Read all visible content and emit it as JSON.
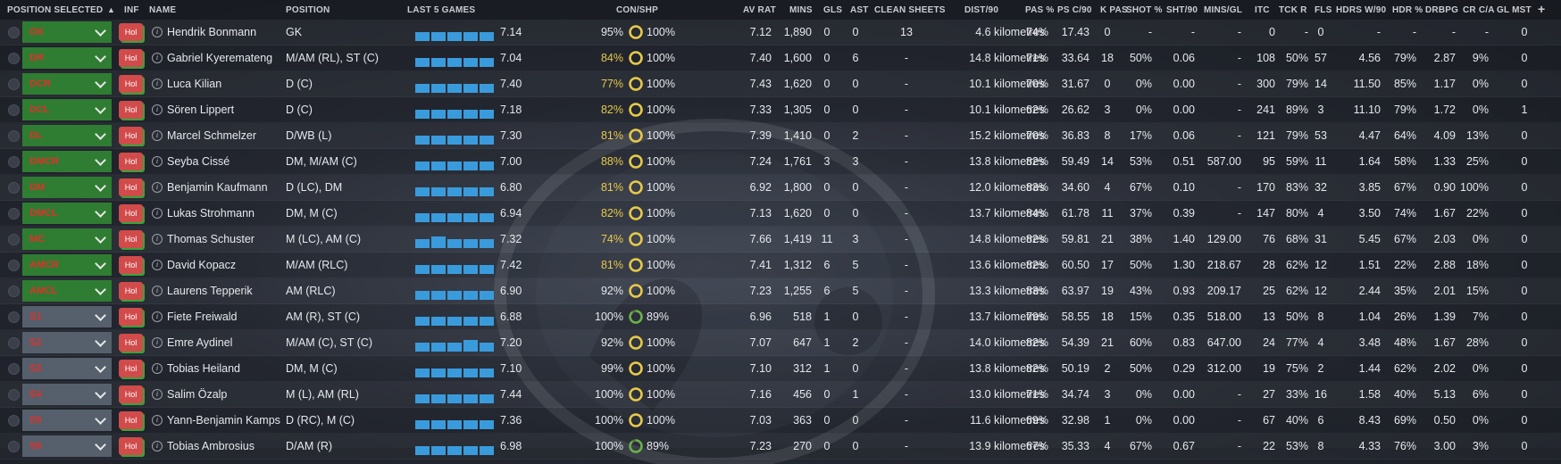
{
  "headers": {
    "position_selected": "POSITION SELECTED",
    "inf": "INF",
    "name": "NAME",
    "position": "POSITION",
    "last5": "LAST 5 GAMES",
    "conshp": "CON/SHP",
    "avrat": "AV RAT",
    "mins": "MINS",
    "gls": "GLS",
    "ast": "AST",
    "cs": "CLEAN SHEETS",
    "dist": "DIST/90",
    "pas": "PAS %",
    "psc": "PS C/90",
    "kpas": "K PAS",
    "shot": "SHOT %",
    "sht": "SHT/90",
    "minsgl": "MINS/GL",
    "itc": "ITC",
    "tckr": "TCK R",
    "fls": "FLS",
    "hdrsw": "HDRS W/90",
    "hdr": "HDR %",
    "drbpg": "DRBPG",
    "crca": "CR C/A",
    "glmst": "GL MST",
    "add": "+"
  },
  "players": [
    {
      "sel": "GK",
      "type": "starter",
      "status": "Hol",
      "name": "Hendrik Bonmann",
      "position": "GK",
      "last5": [
        0.6,
        0.6,
        0.6,
        0.6,
        0.6
      ],
      "form": "7.14",
      "con": "95%",
      "shp": "100%",
      "shp_level": 1.0,
      "con_color": "#e6e8ec",
      "avrat": "7.12",
      "mins": "1,890",
      "gls": "0",
      "ast": "0",
      "cs": "13",
      "dist": "4.6 kilometres",
      "pas": "74%",
      "psc": "17.43",
      "kpas": "0",
      "shot": "-",
      "sht": "-",
      "minsgl": "-",
      "itc": "0",
      "tckr": "-",
      "fls": "0",
      "hdrsw": "-",
      "hdr": "-",
      "drbpg": "-",
      "crca": "-",
      "glmst": "0"
    },
    {
      "sel": "DR",
      "type": "starter",
      "status": "Hol",
      "name": "Gabriel Kyeremateng",
      "position": "M/AM (RL), ST (C)",
      "last5": [
        0.6,
        0.6,
        0.6,
        0.6,
        0.6
      ],
      "form": "7.04",
      "con": "84%",
      "shp": "100%",
      "shp_level": 1.0,
      "con_color": "#e8c84a",
      "avrat": "7.40",
      "mins": "1,600",
      "gls": "0",
      "ast": "6",
      "cs": "-",
      "dist": "14.8 kilometres",
      "pas": "71%",
      "psc": "33.64",
      "kpas": "18",
      "shot": "50%",
      "sht": "0.06",
      "minsgl": "-",
      "itc": "108",
      "tckr": "50%",
      "fls": "57",
      "hdrsw": "4.56",
      "hdr": "79%",
      "drbpg": "2.87",
      "crca": "9%",
      "glmst": "0"
    },
    {
      "sel": "DCR",
      "type": "starter",
      "status": "Hol",
      "name": "Luca Kilian",
      "position": "D (C)",
      "last5": [
        0.6,
        0.6,
        0.6,
        0.6,
        0.6
      ],
      "form": "7.40",
      "con": "77%",
      "shp": "100%",
      "shp_level": 1.0,
      "con_color": "#e8c84a",
      "avrat": "7.43",
      "mins": "1,620",
      "gls": "0",
      "ast": "0",
      "cs": "-",
      "dist": "10.1 kilometres",
      "pas": "70%",
      "psc": "31.67",
      "kpas": "0",
      "shot": "0%",
      "sht": "0.00",
      "minsgl": "-",
      "itc": "300",
      "tckr": "79%",
      "fls": "14",
      "hdrsw": "11.50",
      "hdr": "85%",
      "drbpg": "1.17",
      "crca": "0%",
      "glmst": "0"
    },
    {
      "sel": "DCL",
      "type": "starter",
      "status": "Hol",
      "name": "Sören Lippert",
      "position": "D (C)",
      "last5": [
        0.6,
        0.6,
        0.6,
        0.6,
        0.6
      ],
      "form": "7.18",
      "con": "82%",
      "shp": "100%",
      "shp_level": 1.0,
      "con_color": "#e8c84a",
      "avrat": "7.33",
      "mins": "1,305",
      "gls": "0",
      "ast": "0",
      "cs": "-",
      "dist": "10.1 kilometres",
      "pas": "62%",
      "psc": "26.62",
      "kpas": "3",
      "shot": "0%",
      "sht": "0.00",
      "minsgl": "-",
      "itc": "241",
      "tckr": "89%",
      "fls": "3",
      "hdrsw": "11.10",
      "hdr": "79%",
      "drbpg": "1.72",
      "crca": "0%",
      "glmst": "1"
    },
    {
      "sel": "DL",
      "type": "starter",
      "status": "Hol",
      "name": "Marcel Schmelzer",
      "position": "D/WB (L)",
      "last5": [
        0.6,
        0.6,
        0.6,
        0.6,
        0.6
      ],
      "form": "7.30",
      "con": "81%",
      "shp": "100%",
      "shp_level": 1.0,
      "con_color": "#e8c84a",
      "avrat": "7.39",
      "mins": "1,410",
      "gls": "0",
      "ast": "2",
      "cs": "-",
      "dist": "15.2 kilometres",
      "pas": "70%",
      "psc": "36.83",
      "kpas": "8",
      "shot": "17%",
      "sht": "0.06",
      "minsgl": "-",
      "itc": "121",
      "tckr": "79%",
      "fls": "53",
      "hdrsw": "4.47",
      "hdr": "64%",
      "drbpg": "4.09",
      "crca": "13%",
      "glmst": "0"
    },
    {
      "sel": "DMCR",
      "type": "starter",
      "status": "Hol",
      "name": "Seyba Cissé",
      "position": "DM, M/AM (C)",
      "last5": [
        0.6,
        0.6,
        0.6,
        0.6,
        0.6
      ],
      "form": "7.00",
      "con": "88%",
      "shp": "100%",
      "shp_level": 1.0,
      "con_color": "#e8c84a",
      "avrat": "7.24",
      "mins": "1,761",
      "gls": "3",
      "ast": "3",
      "cs": "-",
      "dist": "13.8 kilometres",
      "pas": "82%",
      "psc": "59.49",
      "kpas": "14",
      "shot": "53%",
      "sht": "0.51",
      "minsgl": "587.00",
      "itc": "95",
      "tckr": "59%",
      "fls": "11",
      "hdrsw": "1.64",
      "hdr": "58%",
      "drbpg": "1.33",
      "crca": "25%",
      "glmst": "0"
    },
    {
      "sel": "DM",
      "type": "starter",
      "status": "Hol",
      "name": "Benjamin Kaufmann",
      "position": "D (LC), DM",
      "last5": [
        0.6,
        0.6,
        0.6,
        0.6,
        0.6
      ],
      "form": "6.80",
      "con": "81%",
      "shp": "100%",
      "shp_level": 1.0,
      "con_color": "#e8c84a",
      "avrat": "6.92",
      "mins": "1,800",
      "gls": "0",
      "ast": "0",
      "cs": "-",
      "dist": "12.0 kilometres",
      "pas": "83%",
      "psc": "34.60",
      "kpas": "4",
      "shot": "67%",
      "sht": "0.10",
      "minsgl": "-",
      "itc": "170",
      "tckr": "83%",
      "fls": "32",
      "hdrsw": "3.85",
      "hdr": "67%",
      "drbpg": "0.90",
      "crca": "100%",
      "glmst": "0"
    },
    {
      "sel": "DMCL",
      "type": "starter",
      "status": "Hol",
      "name": "Lukas Strohmann",
      "position": "DM, M (C)",
      "last5": [
        0.6,
        0.6,
        0.6,
        0.6,
        0.6
      ],
      "form": "6.94",
      "con": "82%",
      "shp": "100%",
      "shp_level": 1.0,
      "con_color": "#e8c84a",
      "avrat": "7.13",
      "mins": "1,620",
      "gls": "0",
      "ast": "0",
      "cs": "-",
      "dist": "13.7 kilometres",
      "pas": "84%",
      "psc": "61.78",
      "kpas": "11",
      "shot": "37%",
      "sht": "0.39",
      "minsgl": "-",
      "itc": "147",
      "tckr": "80%",
      "fls": "4",
      "hdrsw": "3.50",
      "hdr": "74%",
      "drbpg": "1.67",
      "crca": "22%",
      "glmst": "0"
    },
    {
      "sel": "MC",
      "type": "starter",
      "status": "Hol",
      "name": "Thomas Schuster",
      "position": "M (LC), AM (C)",
      "last5": [
        0.6,
        0.8,
        0.6,
        0.6,
        0.6
      ],
      "form": "7.32",
      "con": "74%",
      "shp": "100%",
      "shp_level": 1.0,
      "con_color": "#e8c84a",
      "avrat": "7.66",
      "mins": "1,419",
      "gls": "11",
      "ast": "3",
      "cs": "-",
      "dist": "14.8 kilometres",
      "pas": "82%",
      "psc": "59.81",
      "kpas": "21",
      "shot": "38%",
      "sht": "1.40",
      "minsgl": "129.00",
      "itc": "76",
      "tckr": "68%",
      "fls": "31",
      "hdrsw": "5.45",
      "hdr": "67%",
      "drbpg": "2.03",
      "crca": "0%",
      "glmst": "0"
    },
    {
      "sel": "AMCR",
      "type": "starter",
      "status": "Hol",
      "name": "David Kopacz",
      "position": "M/AM (RLC)",
      "last5": [
        0.6,
        0.6,
        0.6,
        0.6,
        0.6
      ],
      "form": "7.42",
      "con": "81%",
      "shp": "100%",
      "shp_level": 1.0,
      "con_color": "#e8c84a",
      "avrat": "7.41",
      "mins": "1,312",
      "gls": "6",
      "ast": "5",
      "cs": "-",
      "dist": "13.6 kilometres",
      "pas": "82%",
      "psc": "60.50",
      "kpas": "17",
      "shot": "50%",
      "sht": "1.30",
      "minsgl": "218.67",
      "itc": "28",
      "tckr": "62%",
      "fls": "12",
      "hdrsw": "1.51",
      "hdr": "22%",
      "drbpg": "2.88",
      "crca": "18%",
      "glmst": "0"
    },
    {
      "sel": "AMCL",
      "type": "starter",
      "status": "Hol",
      "name": "Laurens Tepperik",
      "position": "AM (RLC)",
      "last5": [
        0.6,
        0.6,
        0.6,
        0.6,
        0.6
      ],
      "form": "6.90",
      "con": "92%",
      "shp": "100%",
      "shp_level": 1.0,
      "con_color": "#e6e8ec",
      "avrat": "7.23",
      "mins": "1,255",
      "gls": "6",
      "ast": "5",
      "cs": "-",
      "dist": "13.3 kilometres",
      "pas": "83%",
      "psc": "63.97",
      "kpas": "19",
      "shot": "43%",
      "sht": "0.93",
      "minsgl": "209.17",
      "itc": "25",
      "tckr": "62%",
      "fls": "12",
      "hdrsw": "2.44",
      "hdr": "35%",
      "drbpg": "2.01",
      "crca": "15%",
      "glmst": "0"
    },
    {
      "sel": "S1",
      "type": "sub",
      "status": "Hol",
      "name": "Fiete Freiwald",
      "position": "AM (R), ST (C)",
      "last5": [
        0.6,
        0.6,
        0.6,
        0.6,
        0.6
      ],
      "form": "6.88",
      "con": "100%",
      "shp": "89%",
      "shp_level": 0.89,
      "con_color": "#e6e8ec",
      "avrat": "6.96",
      "mins": "518",
      "gls": "1",
      "ast": "0",
      "cs": "-",
      "dist": "13.7 kilometres",
      "pas": "79%",
      "psc": "58.55",
      "kpas": "18",
      "shot": "15%",
      "sht": "0.35",
      "minsgl": "518.00",
      "itc": "13",
      "tckr": "50%",
      "fls": "8",
      "hdrsw": "1.04",
      "hdr": "26%",
      "drbpg": "1.39",
      "crca": "7%",
      "glmst": "0"
    },
    {
      "sel": "S2",
      "type": "sub",
      "status": "Hol",
      "name": "Emre Aydinel",
      "position": "M/AM (C), ST (C)",
      "last5": [
        0.6,
        0.6,
        0.6,
        0.8,
        0.6
      ],
      "form": "7.20",
      "con": "92%",
      "shp": "100%",
      "shp_level": 1.0,
      "con_color": "#e6e8ec",
      "avrat": "7.07",
      "mins": "647",
      "gls": "1",
      "ast": "2",
      "cs": "-",
      "dist": "14.0 kilometres",
      "pas": "82%",
      "psc": "54.39",
      "kpas": "21",
      "shot": "60%",
      "sht": "0.83",
      "minsgl": "647.00",
      "itc": "24",
      "tckr": "77%",
      "fls": "4",
      "hdrsw": "3.48",
      "hdr": "48%",
      "drbpg": "1.67",
      "crca": "28%",
      "glmst": "0"
    },
    {
      "sel": "S3",
      "type": "sub",
      "status": "Hol",
      "name": "Tobias Heiland",
      "position": "DM, M (C)",
      "last5": [
        0.6,
        0.6,
        0.6,
        0.6,
        0.6
      ],
      "form": "7.10",
      "con": "99%",
      "shp": "100%",
      "shp_level": 1.0,
      "con_color": "#e6e8ec",
      "avrat": "7.10",
      "mins": "312",
      "gls": "1",
      "ast": "0",
      "cs": "-",
      "dist": "13.8 kilometres",
      "pas": "82%",
      "psc": "50.19",
      "kpas": "2",
      "shot": "50%",
      "sht": "0.29",
      "minsgl": "312.00",
      "itc": "19",
      "tckr": "75%",
      "fls": "2",
      "hdrsw": "1.44",
      "hdr": "62%",
      "drbpg": "2.02",
      "crca": "0%",
      "glmst": "0"
    },
    {
      "sel": "S4",
      "type": "sub",
      "status": "Hol",
      "name": "Salim Özalp",
      "position": "M (L), AM (RL)",
      "last5": [
        0.6,
        0.6,
        0.6,
        0.6,
        0.6
      ],
      "form": "7.44",
      "con": "100%",
      "shp": "100%",
      "shp_level": 1.0,
      "con_color": "#e6e8ec",
      "avrat": "7.16",
      "mins": "456",
      "gls": "0",
      "ast": "1",
      "cs": "-",
      "dist": "13.0 kilometres",
      "pas": "71%",
      "psc": "34.74",
      "kpas": "3",
      "shot": "0%",
      "sht": "0.00",
      "minsgl": "-",
      "itc": "27",
      "tckr": "33%",
      "fls": "16",
      "hdrsw": "1.58",
      "hdr": "40%",
      "drbpg": "5.13",
      "crca": "6%",
      "glmst": "0"
    },
    {
      "sel": "S5",
      "type": "sub",
      "status": "Hol",
      "name": "Yann-Benjamin Kamps",
      "position": "D (RC), M (C)",
      "last5": [
        0.6,
        0.6,
        0.6,
        0.6,
        0.6
      ],
      "form": "7.36",
      "con": "100%",
      "shp": "100%",
      "shp_level": 1.0,
      "con_color": "#e6e8ec",
      "avrat": "7.03",
      "mins": "363",
      "gls": "0",
      "ast": "0",
      "cs": "-",
      "dist": "11.6 kilometres",
      "pas": "69%",
      "psc": "32.98",
      "kpas": "1",
      "shot": "0%",
      "sht": "0.00",
      "minsgl": "-",
      "itc": "67",
      "tckr": "40%",
      "fls": "6",
      "hdrsw": "8.43",
      "hdr": "69%",
      "drbpg": "0.50",
      "crca": "0%",
      "glmst": "0"
    },
    {
      "sel": "S6",
      "type": "sub",
      "status": "Hol",
      "name": "Tobias Ambrosius",
      "position": "D/AM (R)",
      "last5": [
        0.6,
        0.6,
        0.6,
        0.6,
        0.6
      ],
      "form": "6.98",
      "con": "100%",
      "shp": "89%",
      "shp_level": 0.89,
      "con_color": "#e6e8ec",
      "avrat": "7.23",
      "mins": "270",
      "gls": "0",
      "ast": "0",
      "cs": "-",
      "dist": "13.9 kilometres",
      "pas": "67%",
      "psc": "35.33",
      "kpas": "4",
      "shot": "67%",
      "sht": "0.67",
      "minsgl": "-",
      "itc": "22",
      "tckr": "53%",
      "fls": "8",
      "hdrsw": "4.33",
      "hdr": "76%",
      "drbpg": "3.00",
      "crca": "3%",
      "glmst": "0"
    }
  ],
  "colors": {
    "starter_bg": "#2f7d32",
    "sub_bg": "#55606c",
    "position_text": "#e0302a",
    "form_bar": "#3a9bdc",
    "ring_green": "#6ab04c",
    "ring_yellow": "#e8c84a"
  }
}
